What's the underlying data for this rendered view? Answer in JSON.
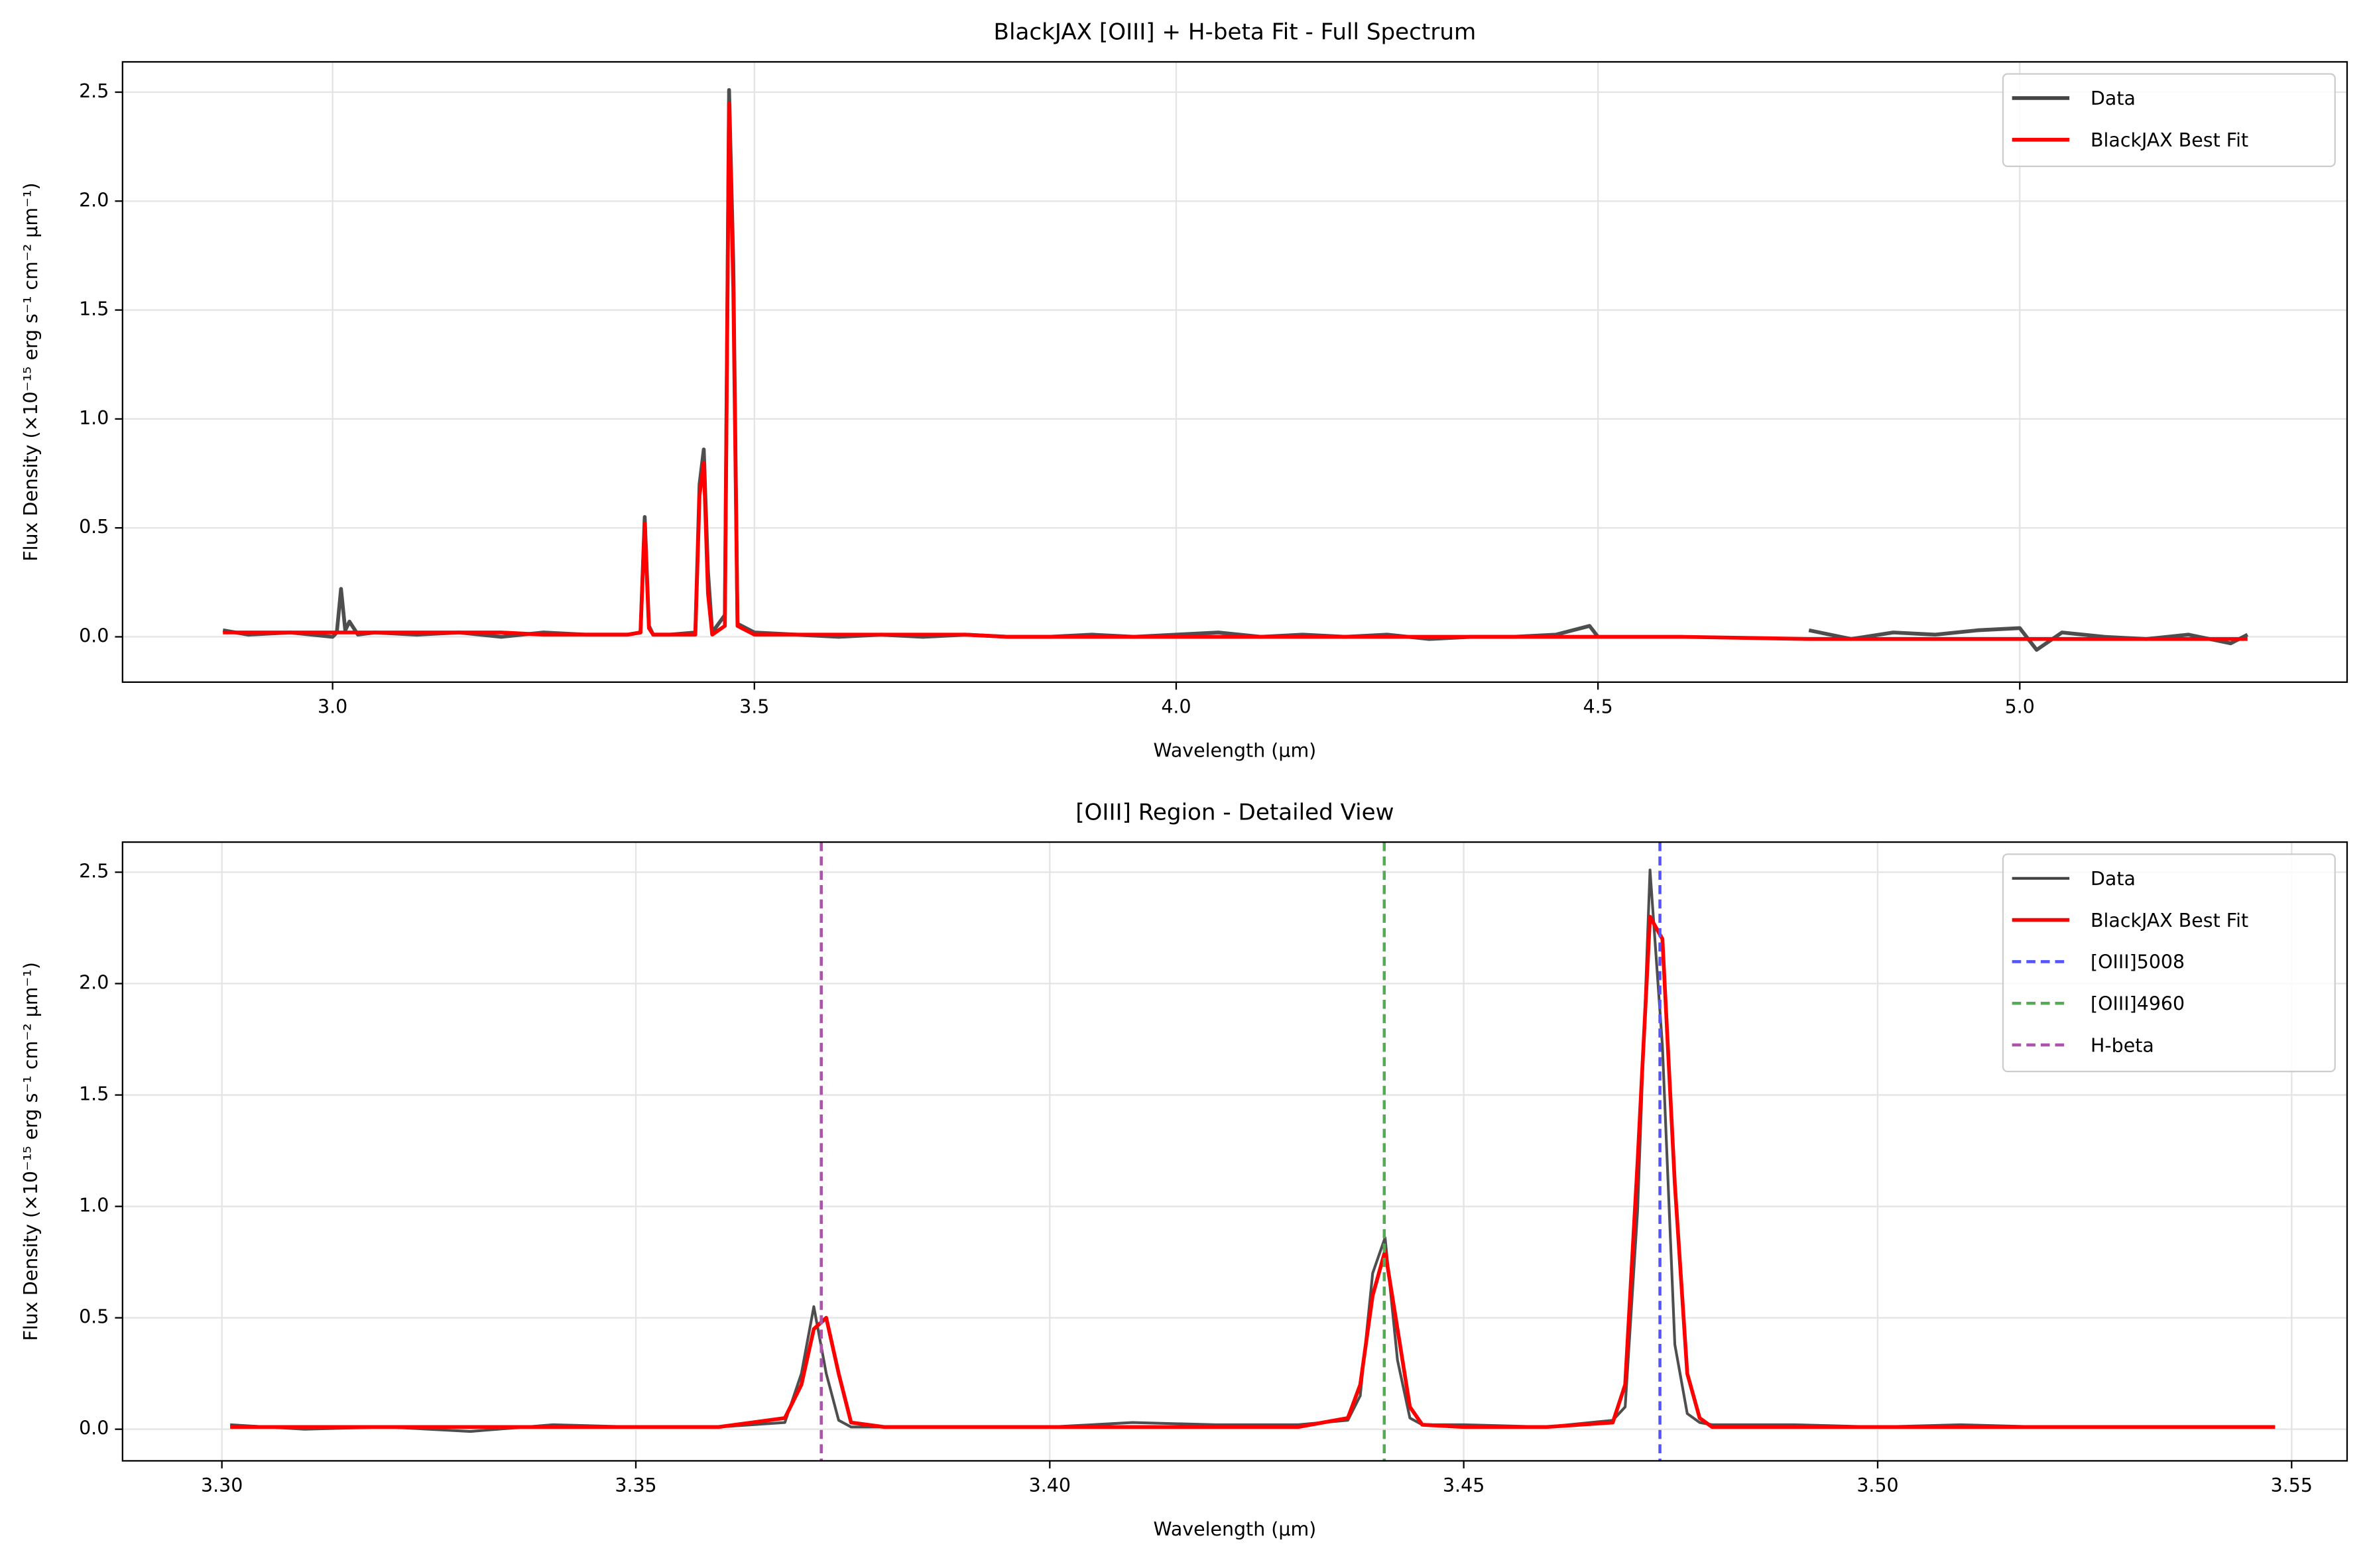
{
  "chart_data": [
    {
      "type": "line",
      "title": "BlackJAX [OIII] + H-beta Fit - Full Spectrum",
      "xlabel": "Wavelength (μm)",
      "ylabel": "Flux Density (×10⁻¹⁵ erg s⁻¹ cm⁻² μm⁻¹)",
      "x": [
        2.87,
        2.9,
        2.95,
        3.0,
        3.005,
        3.01,
        3.015,
        3.02,
        3.03,
        3.05,
        3.1,
        3.15,
        3.2,
        3.25,
        3.3,
        3.35,
        3.365,
        3.37,
        3.375,
        3.38,
        3.4,
        3.43,
        3.435,
        3.44,
        3.445,
        3.45,
        3.465,
        3.47,
        3.475,
        3.48,
        3.5,
        3.55,
        3.6,
        3.65,
        3.7,
        3.75,
        3.8,
        3.85,
        3.9,
        3.95,
        4.0,
        4.05,
        4.1,
        4.15,
        4.2,
        4.25,
        4.3,
        4.35,
        4.4,
        4.45,
        4.49,
        4.5,
        4.6,
        4.75,
        4.8,
        4.85,
        4.9,
        4.95,
        5.0,
        5.02,
        5.05,
        5.1,
        5.15,
        5.2,
        5.25,
        5.27
      ],
      "series": [
        {
          "name": "Data",
          "color": "#444444",
          "width": 2.5,
          "dash": false,
          "values": [
            0.03,
            0.01,
            0.02,
            0.0,
            0.02,
            0.22,
            0.03,
            0.07,
            0.01,
            0.02,
            0.01,
            0.02,
            0.0,
            0.02,
            0.01,
            0.01,
            0.02,
            0.55,
            0.05,
            0.01,
            0.01,
            0.02,
            0.7,
            0.86,
            0.3,
            0.02,
            0.1,
            2.51,
            1.72,
            0.06,
            0.02,
            0.01,
            0.0,
            0.01,
            0.0,
            0.01,
            0.0,
            0.0,
            0.01,
            0.0,
            0.01,
            0.02,
            0.0,
            0.01,
            0.0,
            0.01,
            -0.01,
            0.0,
            0.0,
            0.01,
            0.05,
            0.0,
            null,
            0.03,
            -0.01,
            0.02,
            0.01,
            0.03,
            0.04,
            -0.06,
            0.02,
            0.0,
            -0.01,
            0.01,
            -0.03,
            0.01
          ]
        },
        {
          "name": "BlackJAX Best Fit",
          "color": "#ff0000",
          "width": 2.5,
          "dash": false,
          "values": [
            0.02,
            0.02,
            0.02,
            0.02,
            0.02,
            0.02,
            0.02,
            0.02,
            0.02,
            0.02,
            0.02,
            0.02,
            0.02,
            0.01,
            0.01,
            0.01,
            0.02,
            0.52,
            0.04,
            0.01,
            0.01,
            0.01,
            0.65,
            0.8,
            0.2,
            0.01,
            0.05,
            2.45,
            1.6,
            0.05,
            0.01,
            0.01,
            0.01,
            0.01,
            0.01,
            0.01,
            0.0,
            0.0,
            0.0,
            0.0,
            0.0,
            0.0,
            0.0,
            0.0,
            0.0,
            0.0,
            0.0,
            0.0,
            0.0,
            0.0,
            0.0,
            0.0,
            0.0,
            -0.01,
            -0.01,
            -0.01,
            -0.01,
            -0.01,
            -0.01,
            -0.01,
            -0.01,
            -0.01,
            -0.01,
            -0.01,
            -0.01,
            -0.01
          ]
        }
      ],
      "xlim": [
        2.751,
        5.388
      ],
      "xticks": [
        {
          "value": 3,
          "label": "3.0"
        },
        3.5,
        {
          "value": 4,
          "label": "4.0"
        },
        4.5,
        {
          "value": 5,
          "label": "5.0"
        }
      ],
      "ylim": [
        -0.208,
        2.639
      ],
      "yticks": [
        {
          "value": 0,
          "label": "0.0"
        },
        0.5,
        {
          "value": 1,
          "label": "1.0"
        },
        1.5,
        {
          "value": 2,
          "label": "2.0"
        },
        2.5
      ],
      "grid": true,
      "legend": "upper-right"
    },
    {
      "type": "line",
      "title": "[OIII] Region - Detailed View",
      "xlabel": "Wavelength (μm)",
      "ylabel": "Flux Density (×10⁻¹⁵ erg s⁻¹ cm⁻² μm⁻¹)",
      "x": [
        3.301,
        3.31,
        3.32,
        3.33,
        3.34,
        3.35,
        3.36,
        3.368,
        3.37,
        3.3715,
        3.373,
        3.3745,
        3.376,
        3.38,
        3.39,
        3.4,
        3.41,
        3.42,
        3.43,
        3.436,
        3.4375,
        3.439,
        3.4405,
        3.442,
        3.4435,
        3.445,
        3.45,
        3.46,
        3.468,
        3.4695,
        3.471,
        3.4725,
        3.474,
        3.4755,
        3.477,
        3.4785,
        3.48,
        3.49,
        3.5,
        3.51,
        3.52,
        3.53,
        3.54,
        3.548
      ],
      "series": [
        {
          "name": "Data",
          "color": "#444444",
          "width": 1.8,
          "dash": false,
          "values": [
            0.02,
            0.0,
            0.01,
            -0.01,
            0.02,
            0.01,
            0.01,
            0.03,
            0.25,
            0.55,
            0.25,
            0.04,
            0.01,
            0.01,
            0.01,
            0.01,
            0.03,
            0.02,
            0.02,
            0.04,
            0.15,
            0.7,
            0.86,
            0.31,
            0.05,
            0.02,
            0.02,
            0.01,
            0.04,
            0.1,
            0.98,
            2.51,
            1.72,
            0.38,
            0.07,
            0.03,
            0.02,
            0.02,
            0.01,
            0.02,
            0.01,
            0.01,
            0.01,
            0.01
          ]
        },
        {
          "name": "BlackJAX Best Fit",
          "color": "#ff0000",
          "width": 2.5,
          "dash": false,
          "values": [
            0.01,
            0.01,
            0.01,
            0.01,
            0.01,
            0.01,
            0.01,
            0.05,
            0.2,
            0.45,
            0.5,
            0.25,
            0.03,
            0.01,
            0.01,
            0.01,
            0.01,
            0.01,
            0.01,
            0.05,
            0.2,
            0.6,
            0.8,
            0.45,
            0.1,
            0.02,
            0.01,
            0.01,
            0.03,
            0.2,
            1.2,
            2.3,
            2.2,
            1.1,
            0.25,
            0.05,
            0.01,
            0.01,
            0.01,
            0.01,
            0.01,
            0.01,
            0.01,
            0.01
          ]
        }
      ],
      "vlines": [
        {
          "name": "[OIII]5008",
          "x": 3.4737,
          "color": "#5555ff"
        },
        {
          "name": "[OIII]4960",
          "x": 3.4404,
          "color": "#55aa55"
        },
        {
          "name": "H-beta",
          "x": 3.3724,
          "color": "#aa55aa"
        }
      ],
      "xlim": [
        3.288,
        3.5567
      ],
      "xticks": [
        {
          "value": 3.3,
          "label": "3.30"
        },
        3.35,
        {
          "value": 3.4,
          "label": "3.40"
        },
        3.45,
        {
          "value": 3.5,
          "label": "3.50"
        },
        3.55
      ],
      "ylim": [
        -0.142,
        2.635
      ],
      "yticks": [
        {
          "value": 0,
          "label": "0.0"
        },
        0.5,
        {
          "value": 1,
          "label": "1.0"
        },
        1.5,
        {
          "value": 2,
          "label": "2.0"
        },
        2.5
      ],
      "grid": true,
      "legend": "upper-right"
    }
  ]
}
